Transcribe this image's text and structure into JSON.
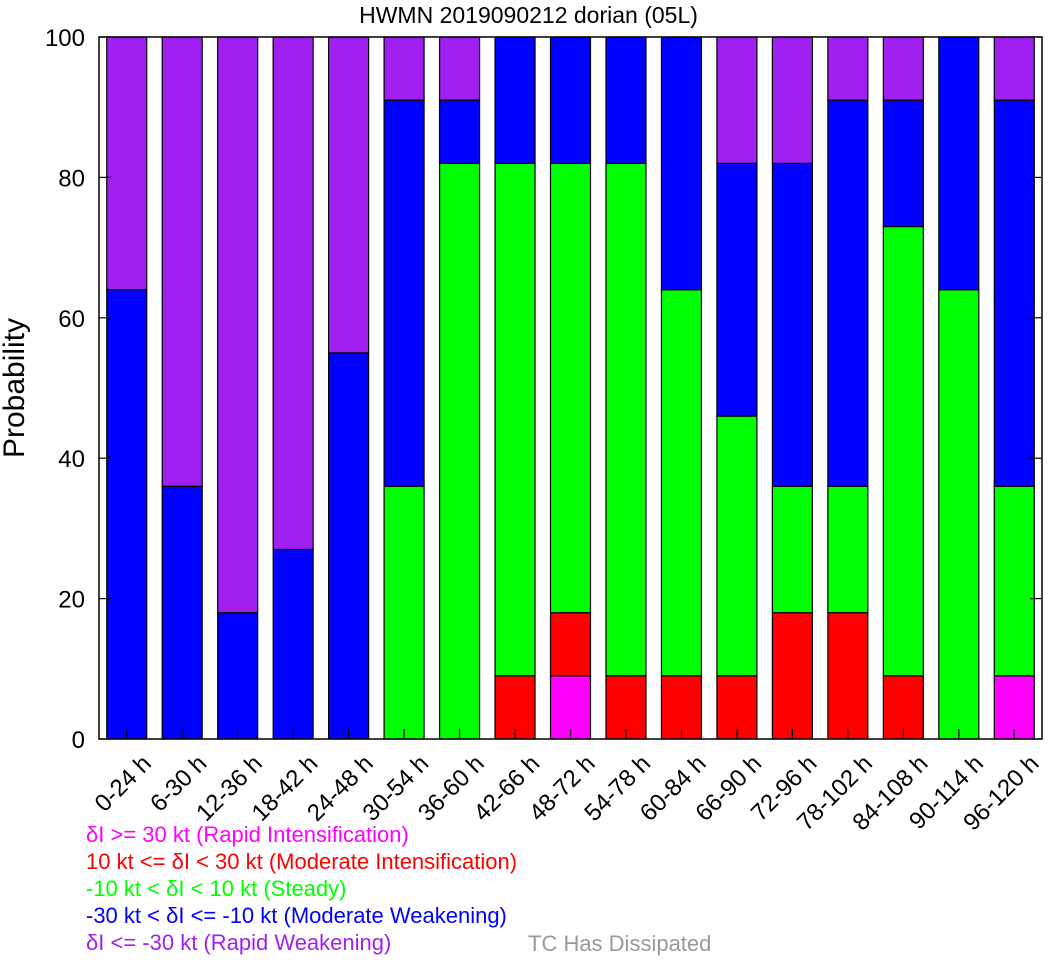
{
  "chart_data": {
    "type": "bar",
    "stacked": true,
    "title": "HWMN 2019090212 dorian (05L)",
    "xlabel": "",
    "ylabel": "Probability",
    "ylim": [
      0,
      100
    ],
    "yticks": [
      0,
      20,
      40,
      60,
      80,
      100
    ],
    "categories": [
      "0-24 h",
      "6-30 h",
      "12-36 h",
      "18-42 h",
      "24-48 h",
      "30-54 h",
      "36-60 h",
      "42-66 h",
      "48-72 h",
      "54-78 h",
      "60-84 h",
      "66-90 h",
      "72-96 h",
      "78-102 h",
      "84-108 h",
      "90-114 h",
      "96-120 h"
    ],
    "series": [
      {
        "name": "δI >= 30 kt (Rapid Intensification)",
        "color": "#ff00ff",
        "values": [
          0,
          0,
          0,
          0,
          0,
          0,
          0,
          0,
          9,
          0,
          0,
          0,
          0,
          0,
          0,
          0,
          9
        ]
      },
      {
        "name": "10 kt <= δI < 30 kt (Moderate Intensification)",
        "color": "#ff0000",
        "values": [
          0,
          0,
          0,
          0,
          0,
          0,
          0,
          9,
          9,
          9,
          9,
          9,
          18,
          18,
          9,
          0,
          0
        ]
      },
      {
        "name": "-10 kt < δI < 10 kt (Steady)",
        "color": "#00ff00",
        "values": [
          0,
          0,
          0,
          0,
          0,
          36,
          82,
          73,
          64,
          73,
          55,
          37,
          18,
          18,
          64,
          64,
          27
        ]
      },
      {
        "name": "-30 kt < δI <= -10 kt (Moderate Weakening)",
        "color": "#0000ff",
        "values": [
          64,
          36,
          18,
          27,
          55,
          55,
          9,
          18,
          18,
          18,
          36,
          36,
          46,
          55,
          18,
          36,
          55
        ]
      },
      {
        "name": "δI <= -30 kt (Rapid Weakening)",
        "color": "#a020f0",
        "values": [
          36,
          64,
          82,
          73,
          45,
          9,
          9,
          0,
          0,
          0,
          0,
          18,
          18,
          9,
          9,
          0,
          9
        ]
      }
    ],
    "legend": {
      "placement": "bottom-left",
      "items": [
        {
          "text": "δI >= 30 kt (Rapid Intensification)",
          "color": "#ff00ff"
        },
        {
          "text": "10 kt <= δI < 30 kt (Moderate Intensification)",
          "color": "#ff0000"
        },
        {
          "text": "-10 kt < δI < 10 kt (Steady)",
          "color": "#00ff00"
        },
        {
          "text": "-30 kt < δI <= -10 kt (Moderate Weakening)",
          "color": "#0000ff"
        },
        {
          "text": "δI <= -30 kt (Rapid Weakening)",
          "color": "#a020f0"
        }
      ],
      "extra_text": "TC Has Dissipated",
      "extra_color": "#999999"
    },
    "grid": false
  }
}
